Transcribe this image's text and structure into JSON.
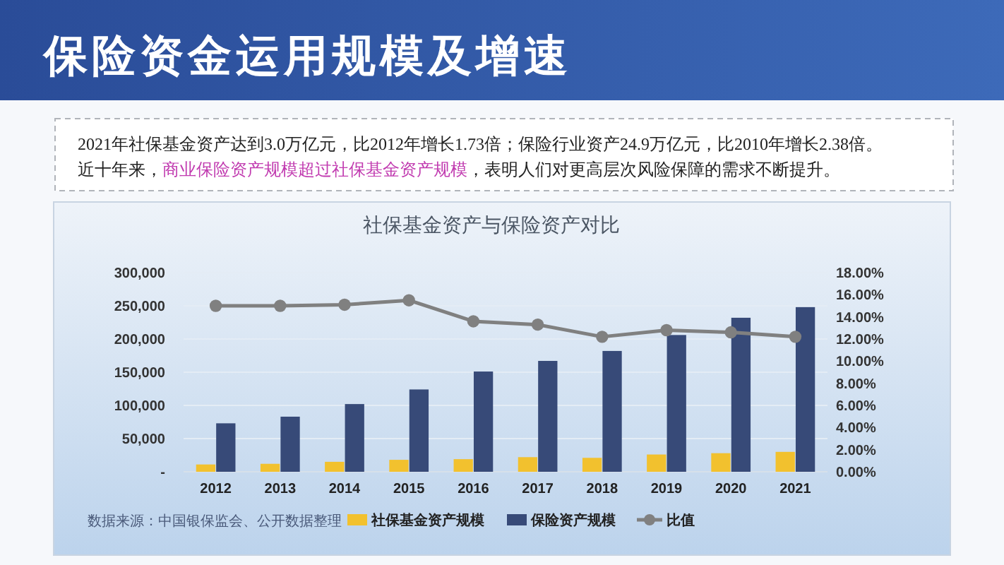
{
  "chart_data": {
    "type": "bar",
    "title": "保险资金运用规模及增速",
    "subtitle": "社保基金资产与保险资产对比",
    "annotations": [
      "2021年社保基金资产达到3.0万亿元，比2012年增长1.73倍；保险行业资产24.9万亿元，比2010年增长2.38倍。",
      "近十年来，",
      "商业保险资产规模超过社保基金资产规模",
      "，表明人们对更高层次风险保障的需求不断提升。",
      "数据来源：中国银保监会、公开数据整理"
    ],
    "categories": [
      "2012",
      "2013",
      "2014",
      "2015",
      "2016",
      "2017",
      "2018",
      "2019",
      "2020",
      "2021"
    ],
    "series": [
      {
        "name": "社保基金资产规模",
        "color": "#f2c12e",
        "values": [
          11000,
          12000,
          15000,
          18000,
          19000,
          22000,
          21000,
          26000,
          28000,
          30000
        ]
      },
      {
        "name": "保险资产规模",
        "color": "#374a78",
        "values": [
          73000,
          83000,
          102000,
          124000,
          151000,
          167000,
          182000,
          206000,
          232000,
          248000
        ]
      },
      {
        "name": "比值",
        "type": "line",
        "axis": "y2",
        "color": "#808080",
        "values": [
          15.0,
          15.0,
          15.1,
          15.5,
          13.6,
          13.3,
          12.2,
          12.8,
          12.6,
          12.2
        ]
      }
    ],
    "ylim": [
      0,
      300000
    ],
    "yticks": [
      {
        "value": 0,
        "label": "-"
      },
      {
        "value": 50000,
        "label": "50,000"
      },
      {
        "value": 100000,
        "label": "100,000"
      },
      {
        "value": 150000,
        "label": "150,000"
      },
      {
        "value": 200000,
        "label": "200,000"
      },
      {
        "value": 250000,
        "label": "250,000"
      },
      {
        "value": 300000,
        "label": "300,000"
      }
    ],
    "y2lim": [
      0,
      18
    ],
    "y2ticks": [
      {
        "value": 0,
        "label": "0.00%"
      },
      {
        "value": 2,
        "label": "2.00%"
      },
      {
        "value": 4,
        "label": "4.00%"
      },
      {
        "value": 6,
        "label": "6.00%"
      },
      {
        "value": 8,
        "label": "8.00%"
      },
      {
        "value": 10,
        "label": "10.00%"
      },
      {
        "value": 12,
        "label": "12.00%"
      },
      {
        "value": 14,
        "label": "14.00%"
      },
      {
        "value": 16,
        "label": "16.00%"
      },
      {
        "value": 18,
        "label": "18.00%"
      }
    ],
    "grid": "y",
    "legend": "bottom",
    "marker": "circle"
  }
}
